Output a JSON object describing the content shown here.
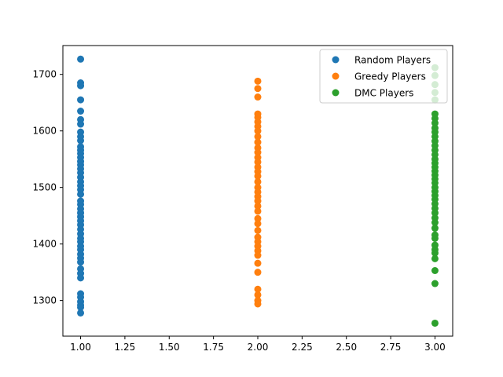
{
  "chart_data": {
    "type": "scatter",
    "title": "",
    "xlabel": "",
    "ylabel": "",
    "xlim": [
      0.9,
      3.1
    ],
    "ylim": [
      1237,
      1751
    ],
    "xticks": [
      "1.00",
      "1.25",
      "1.50",
      "1.75",
      "2.00",
      "2.25",
      "2.50",
      "2.75",
      "3.00"
    ],
    "xtick_values": [
      1.0,
      1.25,
      1.5,
      1.75,
      2.0,
      2.25,
      2.5,
      2.75,
      3.0
    ],
    "yticks": [
      "1300",
      "1400",
      "1500",
      "1600",
      "1700"
    ],
    "ytick_values": [
      1300,
      1400,
      1500,
      1600,
      1700
    ],
    "grid": false,
    "legend_position": "top-right",
    "series": [
      {
        "name": "Random Players",
        "color": "#1f77b4",
        "x": 1.0,
        "y": [
          1727,
          1685,
          1680,
          1655,
          1635,
          1620,
          1612,
          1598,
          1590,
          1583,
          1572,
          1566,
          1560,
          1553,
          1546,
          1540,
          1533,
          1526,
          1518,
          1510,
          1503,
          1496,
          1488,
          1476,
          1470,
          1462,
          1455,
          1448,
          1441,
          1434,
          1426,
          1418,
          1410,
          1404,
          1396,
          1390,
          1382,
          1375,
          1368,
          1356,
          1348,
          1340,
          1312,
          1306,
          1298,
          1292,
          1288,
          1278
        ]
      },
      {
        "name": "Greedy Players",
        "color": "#ff7f0e",
        "x": 2.0,
        "y": [
          1688,
          1675,
          1660,
          1630,
          1624,
          1616,
          1608,
          1600,
          1590,
          1580,
          1570,
          1562,
          1553,
          1545,
          1536,
          1528,
          1520,
          1510,
          1500,
          1492,
          1484,
          1476,
          1467,
          1458,
          1445,
          1436,
          1424,
          1412,
          1404,
          1396,
          1388,
          1380,
          1366,
          1350,
          1320,
          1310,
          1300,
          1294
        ]
      },
      {
        "name": "DMC Players",
        "color": "#2ca02c",
        "x": 3.0,
        "y": [
          1712,
          1698,
          1682,
          1668,
          1655,
          1630,
          1622,
          1614,
          1605,
          1598,
          1590,
          1582,
          1574,
          1566,
          1558,
          1550,
          1543,
          1536,
          1529,
          1522,
          1515,
          1508,
          1500,
          1493,
          1486,
          1479,
          1471,
          1463,
          1455,
          1446,
          1438,
          1428,
          1416,
          1410,
          1398,
          1390,
          1384,
          1374,
          1353,
          1330,
          1260
        ]
      }
    ]
  }
}
